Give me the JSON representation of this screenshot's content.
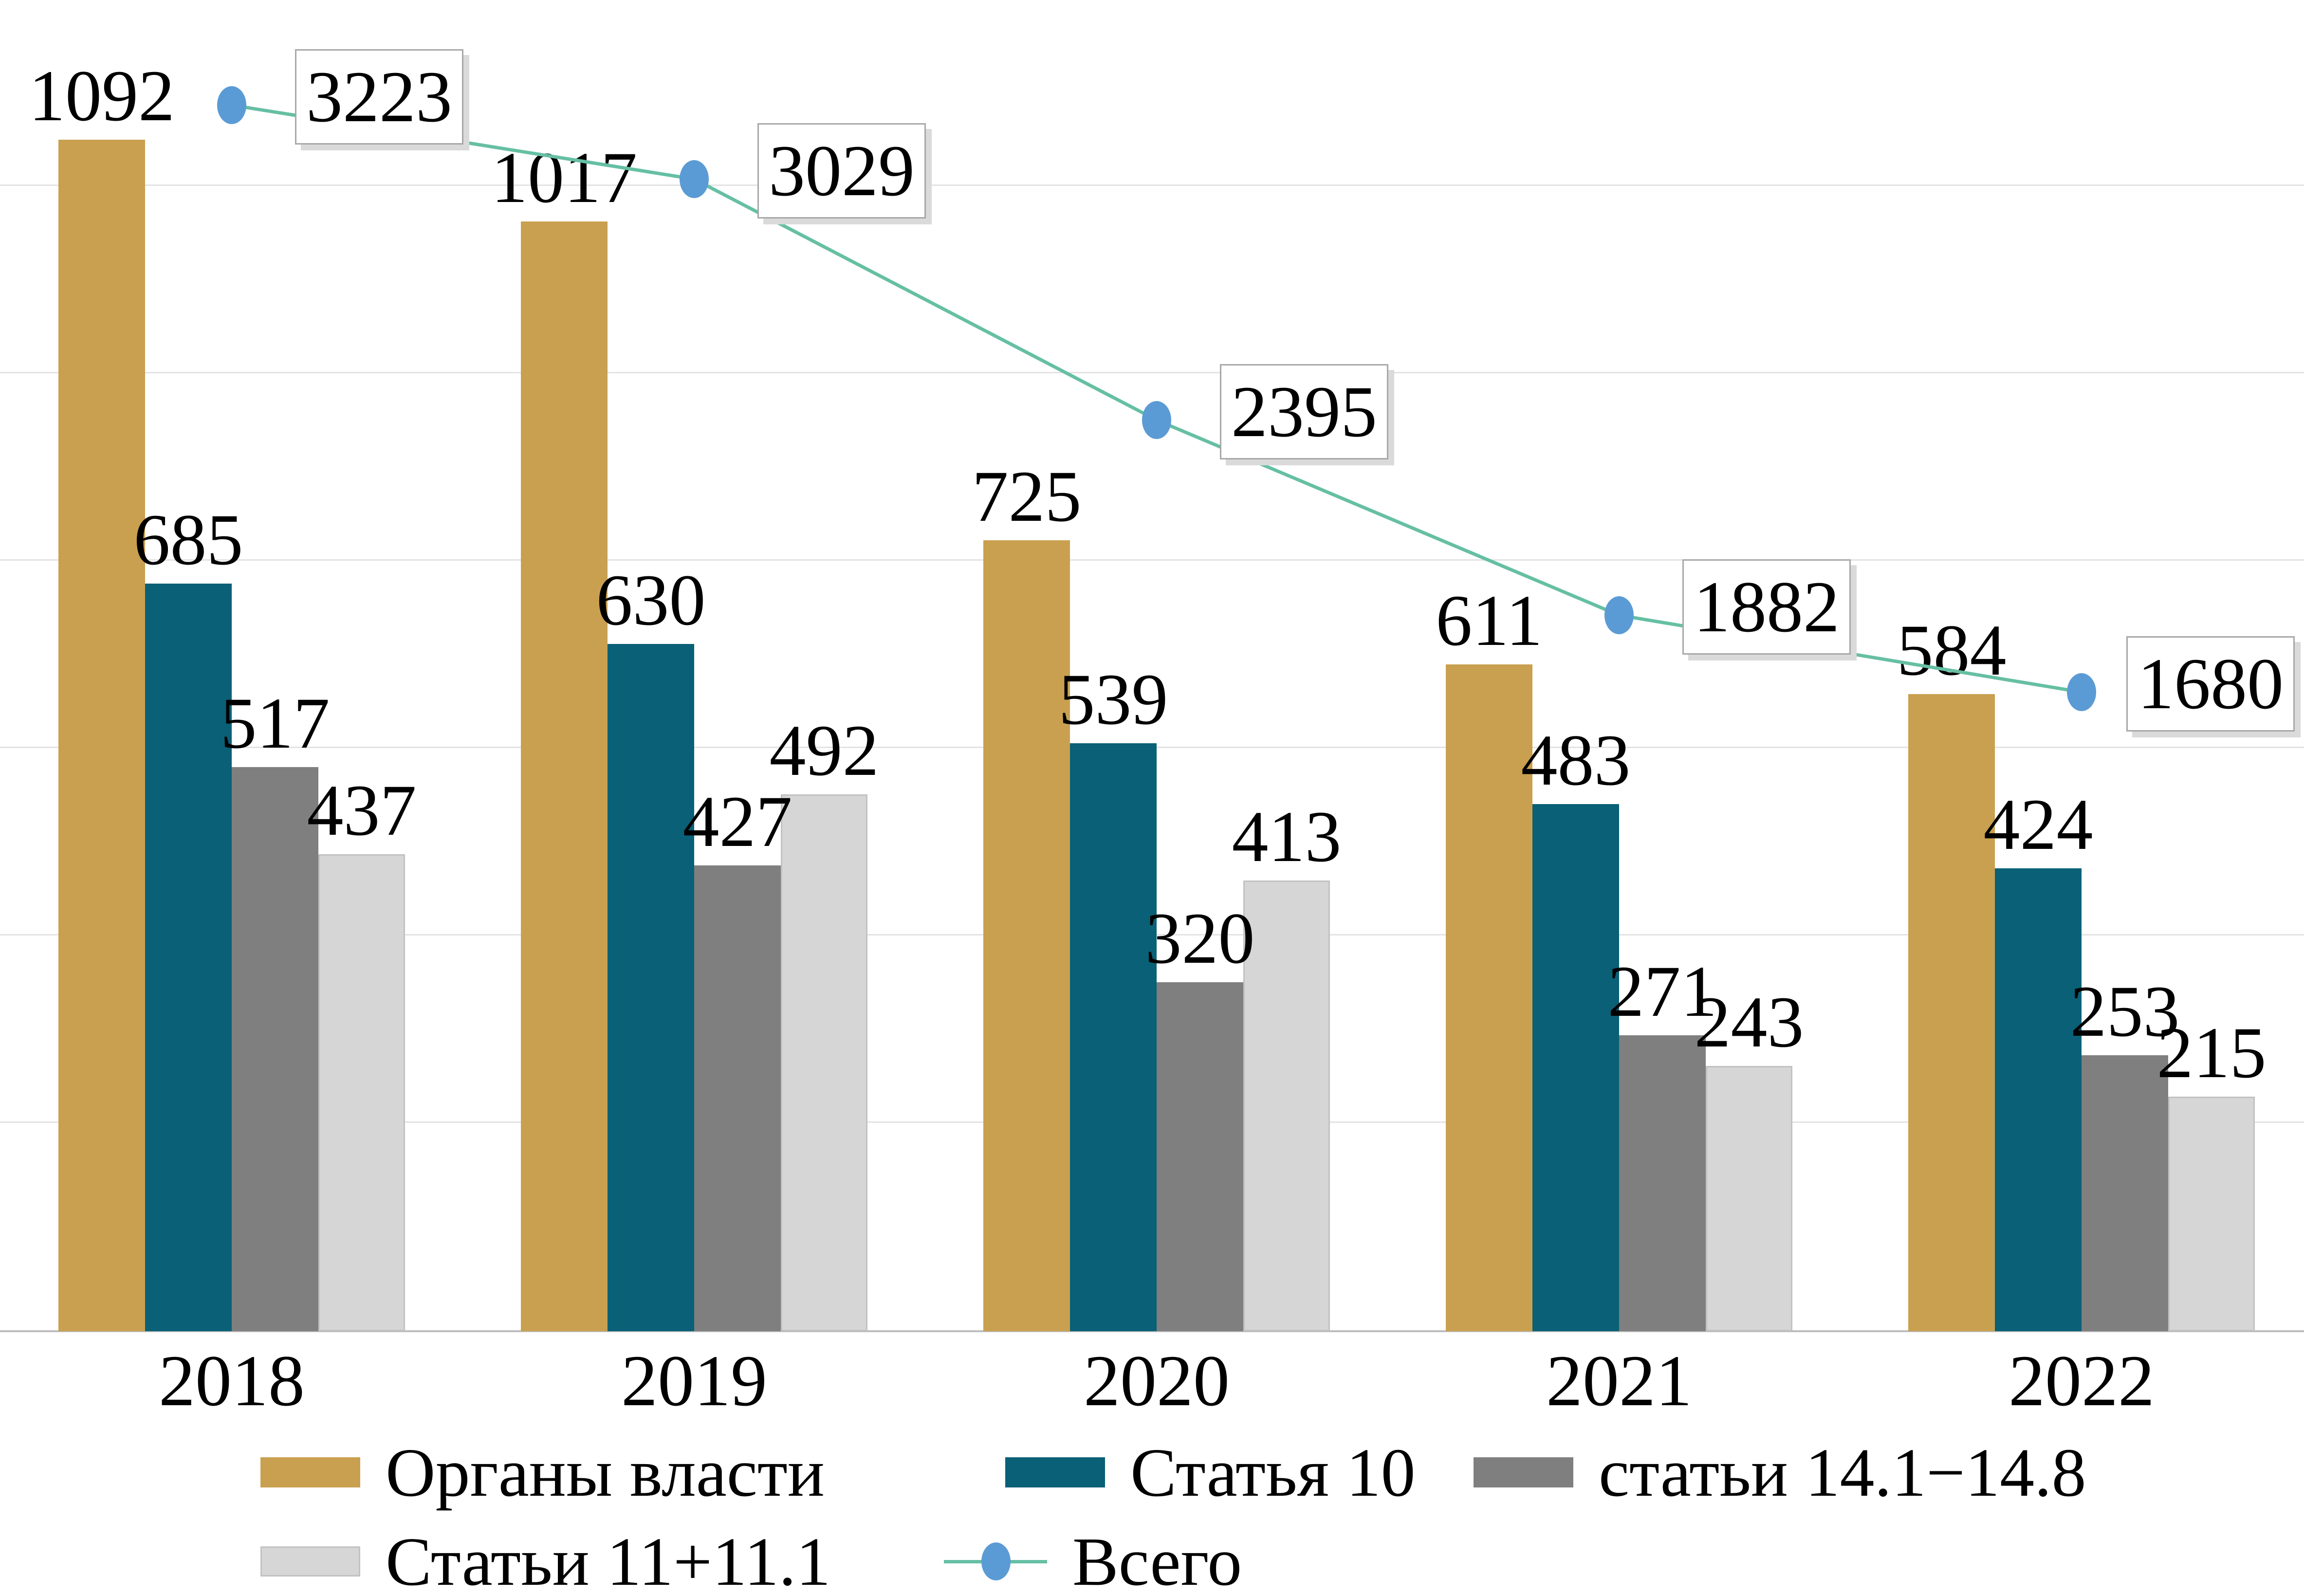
{
  "chart_data": {
    "type": "bar+line",
    "title": "",
    "xlabel": "",
    "ylabel": "",
    "grid": true,
    "legend_position": "bottom",
    "categories": [
      "2018",
      "2019",
      "2020",
      "2021",
      "2022"
    ],
    "series": [
      {
        "name": "Органы власти",
        "type": "bar",
        "color": "#C9A050",
        "values": [
          1092,
          1017,
          725,
          611,
          584
        ]
      },
      {
        "name": "Статья 10",
        "type": "bar",
        "color": "#0A6076",
        "values": [
          685,
          630,
          539,
          483,
          424
        ]
      },
      {
        "name": "статьи 14.1−14.8",
        "type": "bar",
        "color": "#7F7F7F",
        "values": [
          517,
          427,
          320,
          271,
          253
        ]
      },
      {
        "name": "Статьи 11+11.1",
        "type": "bar",
        "color": "#D6D6D6",
        "border": "#C2C2C2",
        "values": [
          437,
          492,
          413,
          243,
          215
        ]
      },
      {
        "name": "Всего",
        "type": "line",
        "color": "#66BFA3",
        "marker_color": "#5B9BD5",
        "values": [
          3223,
          3029,
          2395,
          1882,
          1680
        ]
      }
    ],
    "bar_axis_max": 1220,
    "line_axis_max": 3500
  },
  "colors": {
    "background": "#FFFFFF",
    "gridline": "#E3E3E3",
    "axis_line": "#BDBDBD",
    "callout_border": "#A8A8A8",
    "callout_shadow": "#DADADA",
    "text": "#000000"
  }
}
